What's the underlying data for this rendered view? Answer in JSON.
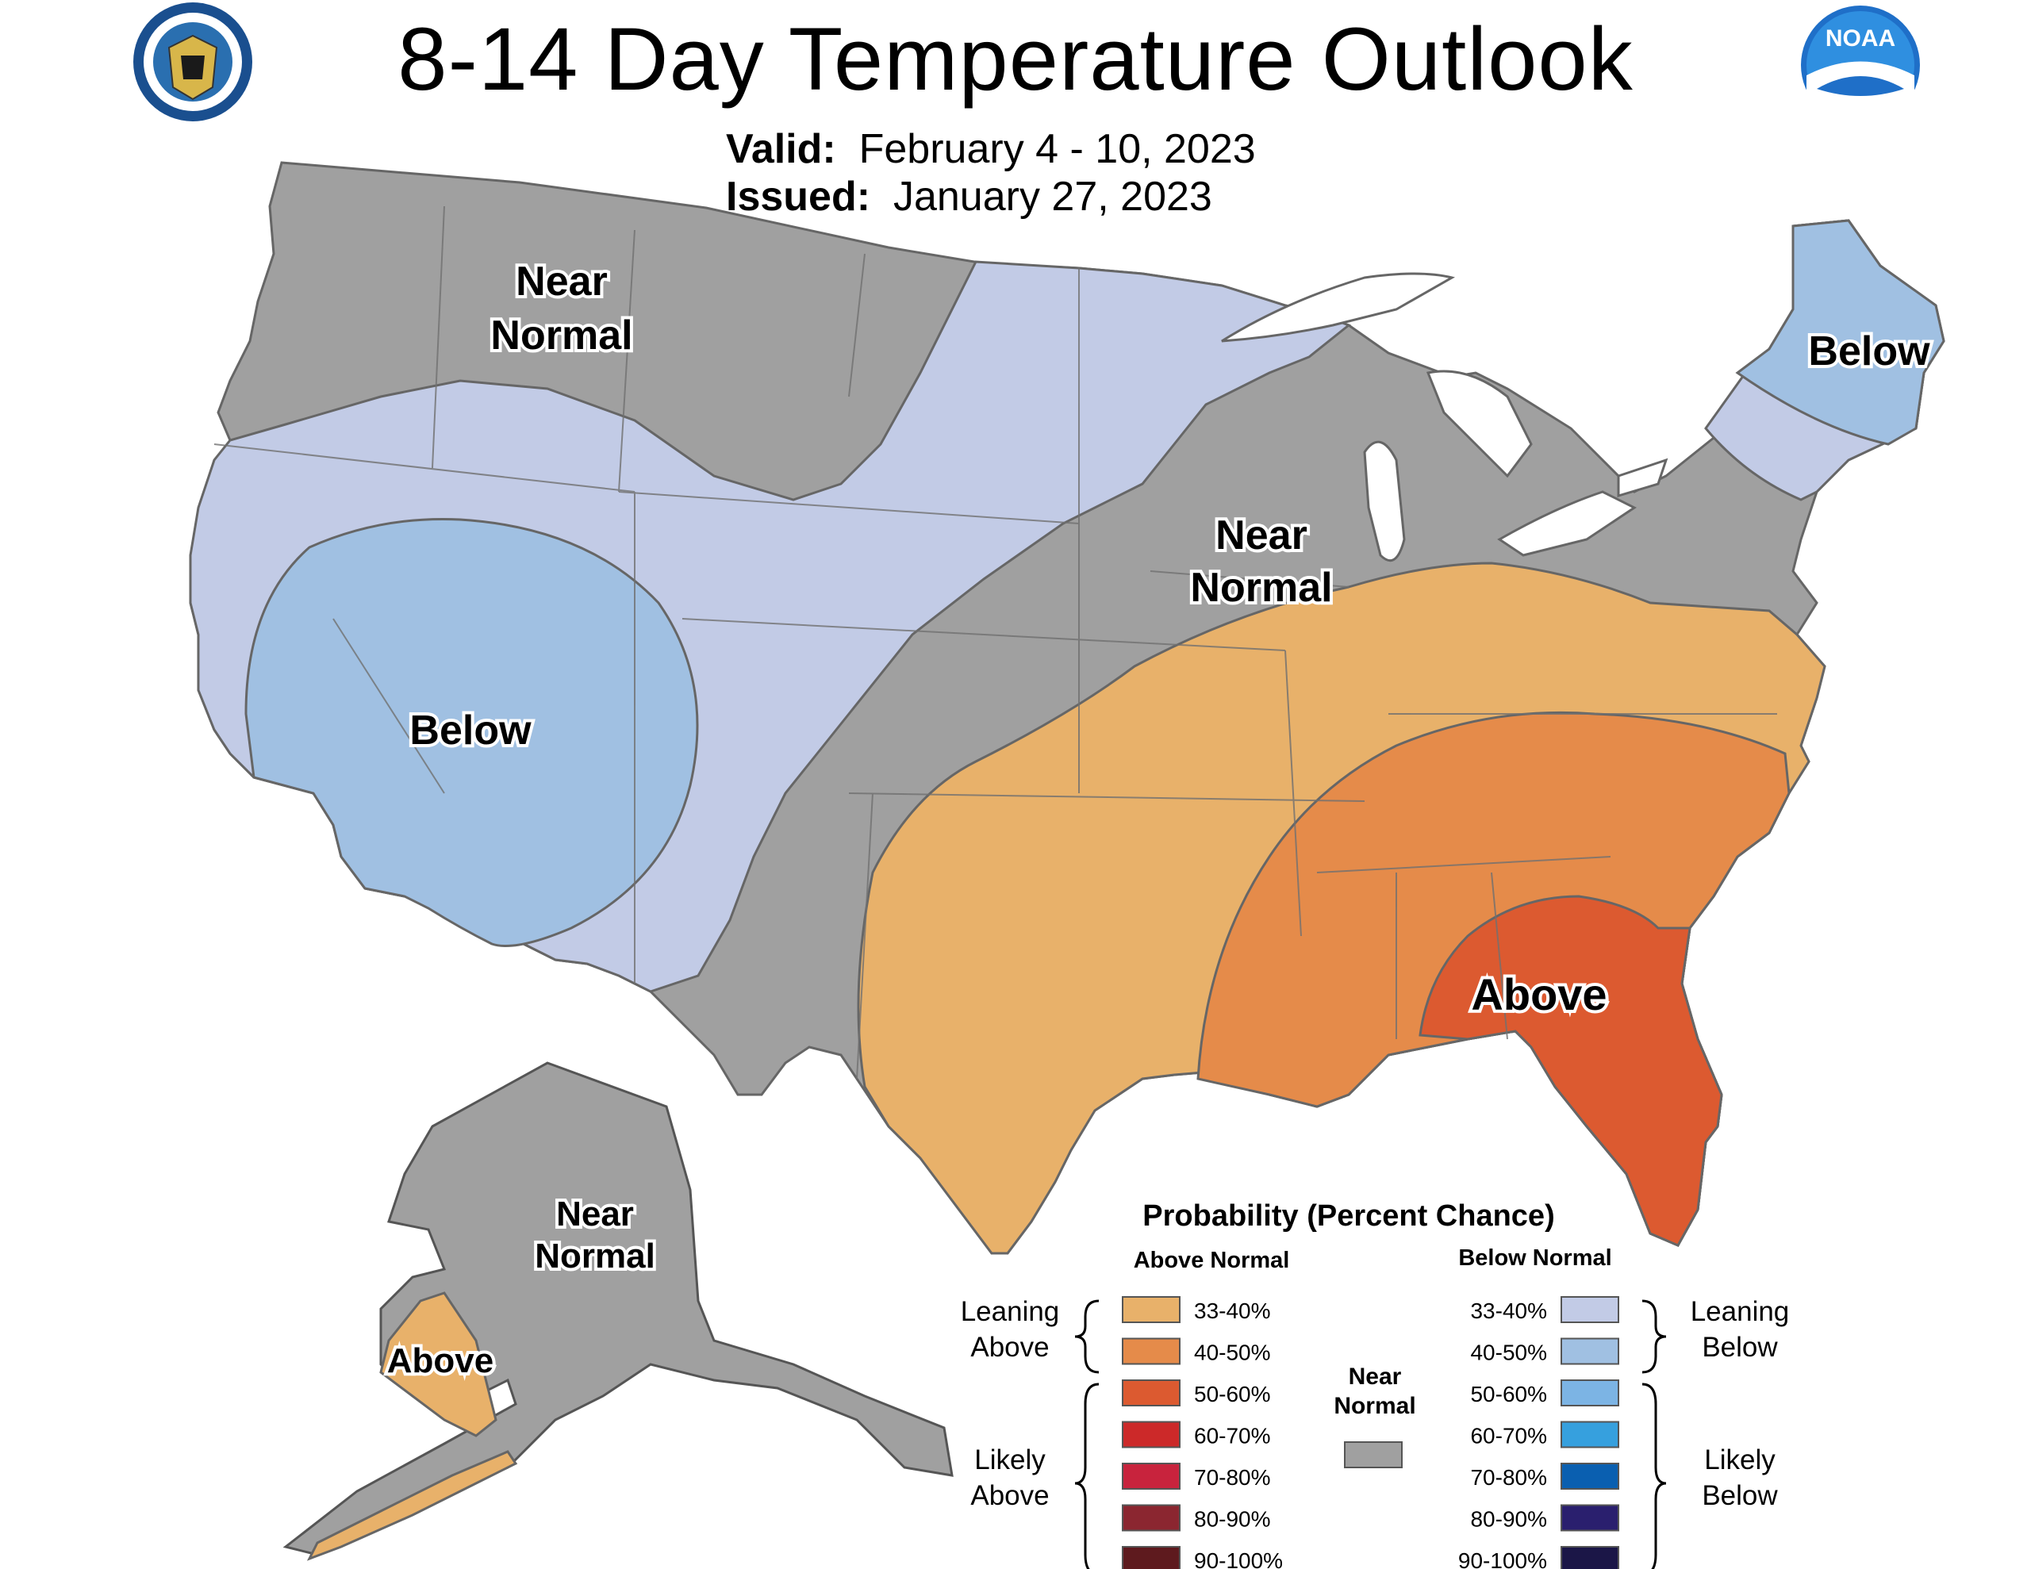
{
  "title": "8-14 Day Temperature Outlook",
  "valid_label": "Valid:",
  "valid_value": "February 4 - 10, 2023",
  "issued_label": "Issued:",
  "issued_value": "January 27, 2023",
  "logos": {
    "left": "department-of-commerce-seal",
    "right": "noaa-logo",
    "noaa_text": "NOAA"
  },
  "map_labels": {
    "nw_near": [
      "Near",
      "Normal"
    ],
    "central_near": [
      "Near",
      "Normal"
    ],
    "sw_below": "Below",
    "ne_below": "Below",
    "se_above": "Above",
    "ak_near": [
      "Near",
      "Normal"
    ],
    "ak_above": "Above"
  },
  "colors": {
    "near_normal": "#a0a0a0",
    "above_33_40": "#e8b16a",
    "above_40_50": "#e58b4a",
    "above_50_60": "#dc5a30",
    "above_60_70": "#cc2929",
    "above_70_80": "#c8233d",
    "above_80_90": "#8b2630",
    "above_90_100": "#5e1a1e",
    "below_33_40": "#c2cbe6",
    "below_40_50": "#a0c0e2",
    "below_50_60": "#7cb4e4",
    "below_60_70": "#36a0de",
    "below_70_80": "#0a5fb0",
    "below_80_90": "#2a1f6e",
    "below_90_100": "#1b1647"
  },
  "legend": {
    "title": "Probability (Percent Chance)",
    "above_header": "Above Normal",
    "below_header": "Below Normal",
    "near_label": [
      "Near",
      "Normal"
    ],
    "leaning_above": [
      "Leaning",
      "Above"
    ],
    "likely_above": [
      "Likely",
      "Above"
    ],
    "leaning_below": [
      "Leaning",
      "Below"
    ],
    "likely_below": [
      "Likely",
      "Below"
    ],
    "above_items": [
      "33-40%",
      "40-50%",
      "50-60%",
      "60-70%",
      "70-80%",
      "80-90%",
      "90-100%"
    ],
    "below_items": [
      "33-40%",
      "40-50%",
      "50-60%",
      "60-70%",
      "70-80%",
      "80-90%",
      "90-100%"
    ]
  }
}
